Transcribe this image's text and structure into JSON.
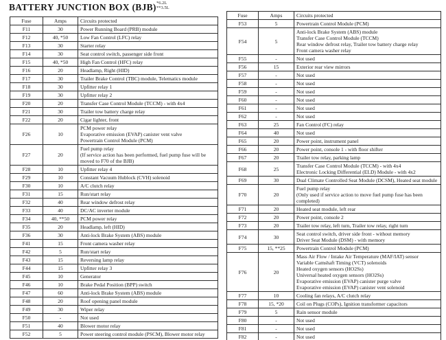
{
  "title": "BATTERY JUNCTION BOX (BJB)",
  "notes": [
    "*6.2L",
    "**3.5L"
  ],
  "left_table": {
    "headers": [
      "Fuse",
      "Amps",
      "Circuits protected"
    ],
    "rows": [
      [
        "F11",
        "30",
        "Power Running Board (PRB) module"
      ],
      [
        "F12",
        "40, *50",
        "Low Fan Control (LFC) relay"
      ],
      [
        "F13",
        "30",
        "Starter relay"
      ],
      [
        "F14",
        "30",
        "Seat control switch, passenger side front"
      ],
      [
        "F15",
        "40, *50",
        "High Fan Control (HFC) relay"
      ],
      [
        "F16",
        "20",
        "Headlamp, Right (HID)"
      ],
      [
        "F17",
        "30",
        "Trailer Brake Control (TBC) module, Telematics module"
      ],
      [
        "F18",
        "30",
        "Upfitter relay 1"
      ],
      [
        "F19",
        "30",
        "Upfitter relay 2"
      ],
      [
        "F20",
        "20",
        "Transfer Case Control Module (TCCM) - with 4x4"
      ],
      [
        "F21",
        "30",
        "Trailer tow battery charge relay"
      ],
      [
        "F22",
        "20",
        "Cigar lighter, front"
      ],
      [
        "F26",
        "10",
        "PCM power relay\nEvaporative emission (EVAP) canister vent valve\nPowertrain Control Module (PCM)"
      ],
      [
        "F27",
        "20",
        "Fuel pump relay\n(If service action has been performed, fuel pump fuse will be\nmoved to F70 of the BJB)"
      ],
      [
        "F28",
        "10",
        "Upfitter relay 4"
      ],
      [
        "F29",
        "10",
        "Constant Vacuum Hublock (CVH) solenoid"
      ],
      [
        "F30",
        "10",
        "A/C clutch relay"
      ],
      [
        "F31",
        "15",
        "Run/start relay"
      ],
      [
        "F32",
        "40",
        "Rear window defrost relay"
      ],
      [
        "F33",
        "40",
        "DC/AC inverter module"
      ],
      [
        "F34",
        "40, **50",
        "PCM power relay"
      ],
      [
        "F35",
        "20",
        "Headlamp, left (HID)"
      ],
      [
        "F36",
        "30",
        "Anti-lock Brake System (ABS) module"
      ],
      [
        "F41",
        "15",
        "Front camera washer relay"
      ],
      [
        "F42",
        "5",
        "Run/start relay"
      ],
      [
        "F43",
        "15",
        "Reversing lamp relay"
      ],
      [
        "F44",
        "15",
        "Upfitter relay 3"
      ],
      [
        "F45",
        "10",
        "Generator"
      ],
      [
        "F46",
        "10",
        "Brake Pedal Position (BPP) switch"
      ],
      [
        "F47",
        "60",
        "Anti-lock Brake System (ABS) module"
      ],
      [
        "F48",
        "20",
        "Roof opening panel module"
      ],
      [
        "F49",
        "30",
        "Wiper relay"
      ],
      [
        "F50",
        "-",
        "Not used"
      ],
      [
        "F51",
        "40",
        "Blower motor relay"
      ],
      [
        "F52",
        "5",
        "Power steering control module (PSCM), Blower motor relay"
      ]
    ]
  },
  "right_table": {
    "headers": [
      "Fuse",
      "Amps",
      "Circuits protected"
    ],
    "rows": [
      [
        "F53",
        "5",
        "Powertrain Control Module (PCM)"
      ],
      [
        "F54",
        "5",
        "Anti-lock Brake System (ABS) module\nTransfer Case Control Module (TCCM)\nRear window defrost relay, Trailer tow battery charge relay\nFront camera washer relay"
      ],
      [
        "F55",
        "-",
        "Not used"
      ],
      [
        "F56",
        "15",
        "Exterior rear view mirrors"
      ],
      [
        "F57",
        "-",
        "Not used"
      ],
      [
        "F58",
        "-",
        "Not used"
      ],
      [
        "F59",
        "-",
        "Not used"
      ],
      [
        "F60",
        "-",
        "Not used"
      ],
      [
        "F61",
        "-",
        "Not used"
      ],
      [
        "F62",
        "-",
        "Not used"
      ],
      [
        "F63",
        "25",
        "Fan Control (FC) relay"
      ],
      [
        "F64",
        "40",
        "Not used"
      ],
      [
        "F65",
        "20",
        "Power point, instrument panel"
      ],
      [
        "F66",
        "20",
        "Power point, console 1 - with floor shifter"
      ],
      [
        "F67",
        "20",
        "Trailer tow relay, parking lamp"
      ],
      [
        "F68",
        "25",
        "Transfer Case Control Module (TCCM) - with 4x4\nElectronic Locking Differential (ELD) Module - with 4x2"
      ],
      [
        "F69",
        "30",
        "Dual Climate Controlled Seat Module (DCSM), Heated seat module"
      ],
      [
        "F70",
        "20",
        "Fuel pump relay\n(Only used if service action to move fuel pump fuse has been\ncompleted)"
      ],
      [
        "F71",
        "20",
        "Heated seat module, left rear"
      ],
      [
        "F72",
        "20",
        "Power point, console 2"
      ],
      [
        "F73",
        "20",
        "Trailer tow relay, left turn, Trailer tow relay, right turn"
      ],
      [
        "F74",
        "30",
        "Seat control switch, driver side front - without memory\nDriver Seat Module (DSM) - with memory"
      ],
      [
        "F75",
        "15, **25",
        "Powertrain Control Module (PCM)"
      ],
      [
        "F76",
        "20",
        "Mass Air Flow / Intake Air Temperature (MAF/IAT) sensor\nVariable Camshaft Timing (VCT) solenoids\nHeated oxygen sensors (HO2Ss)\nUniversal heated oxygen sensors (HO2Ss)\nEvaporative emission (EVAP) canister purge valve\nEvaporative emission (EVAP) canister vent solenoid"
      ],
      [
        "F77",
        "10",
        "Cooling fan relays, A/C clutch relay"
      ],
      [
        "F78",
        "15, *20",
        "Coil on Plugs (COPs), Ignition transformer capacitors"
      ],
      [
        "F79",
        "5",
        "Rain sensor module"
      ],
      [
        "F80",
        "-",
        "Not used"
      ],
      [
        "F81",
        "-",
        "Not used"
      ],
      [
        "F82",
        "-",
        "Not used"
      ]
    ]
  }
}
